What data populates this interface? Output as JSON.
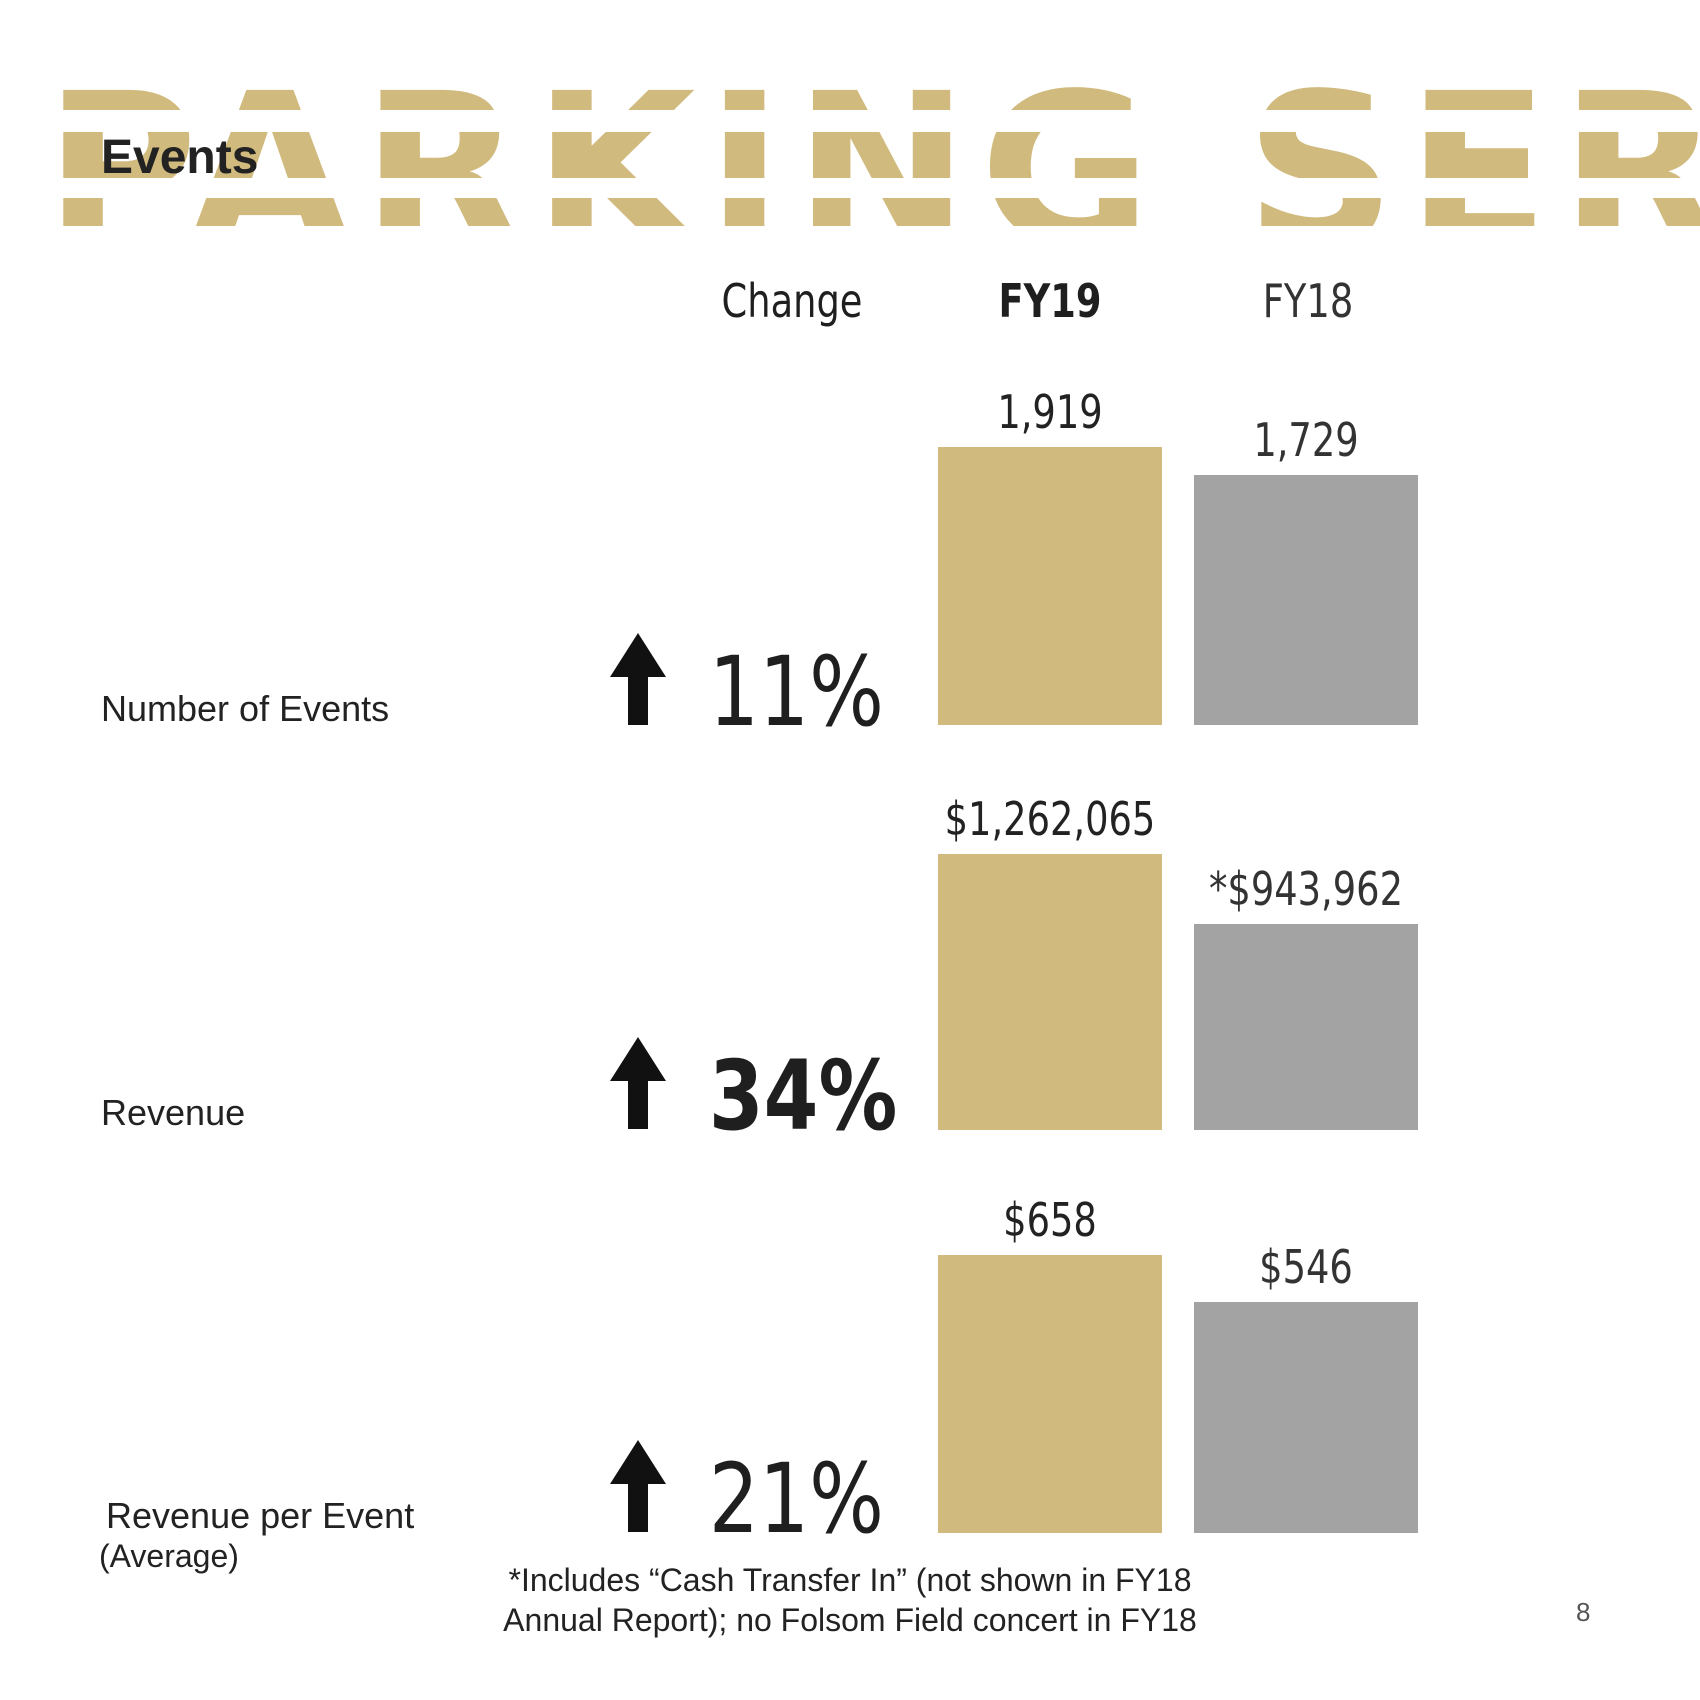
{
  "banner": {
    "text": "PARKING SERVICES"
  },
  "section_title": "Events",
  "columns": {
    "change": "Change",
    "fy19": "FY19",
    "fy18": "FY18"
  },
  "rows": [
    {
      "label": "Number of Events",
      "sublabel": "",
      "change": "11%",
      "fy19_label": "1,919",
      "fy18_label": "1,729"
    },
    {
      "label": "Revenue",
      "sublabel": "",
      "change": "34%",
      "fy19_label": "$1,262,065",
      "fy18_label": "*$943,962"
    },
    {
      "label": "Revenue per Event",
      "sublabel": "(Average)",
      "change": "21%",
      "fy19_label": "$658",
      "fy18_label": "$546"
    }
  ],
  "footnote": {
    "line1": "*Includes “Cash Transfer In” (not shown in FY18",
    "line2": "Annual Report); no Folsom Field  concert in FY18"
  },
  "page_number": "8",
  "colors": {
    "fy19": "#d1ba7d",
    "fy18": "#a3a3a3",
    "banner": "#d1ba7d",
    "arrow": "#111111"
  },
  "icons": {
    "change_indicator": "arrow-up-icon"
  },
  "chart_data": [
    {
      "type": "bar",
      "categories": [
        "FY19",
        "FY18"
      ],
      "values": [
        1919,
        1729
      ]
    },
    {
      "type": "bar",
      "categories": [
        "FY19",
        "FY18"
      ],
      "values": [
        1262065,
        943962
      ]
    },
    {
      "type": "bar",
      "categories": [
        "FY19",
        "FY18"
      ],
      "values": [
        658,
        546
      ]
    }
  ]
}
